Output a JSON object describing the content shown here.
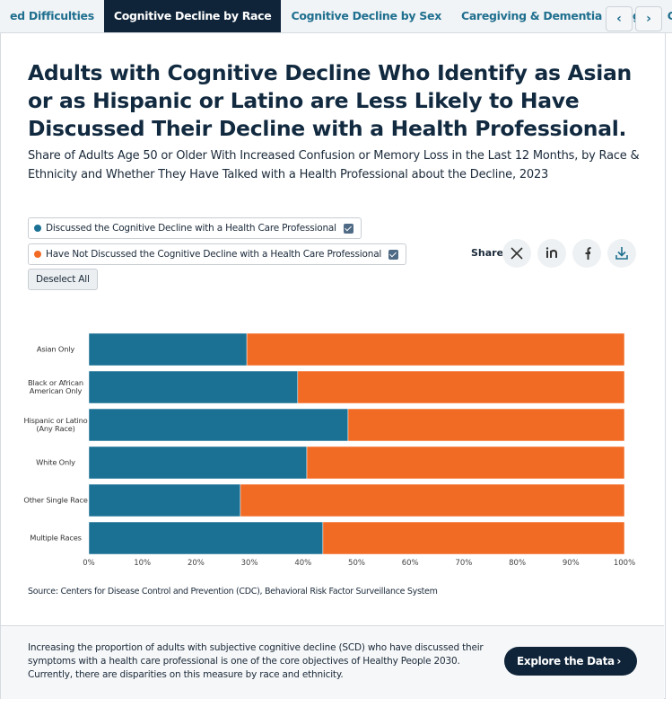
{
  "ui": {
    "tabs": [
      "ed Difficulties",
      "Cognitive Decline by Race",
      "Cognitive Decline by Sex",
      "Caregiving & Dementia by Age",
      "Caregiving"
    ],
    "active_tab": 1,
    "share_label": "Share",
    "deselect_label": "Deselect All",
    "source": "Source: Centers for Disease Control and Prevention (CDC), Behavioral Risk Factor Surveillance System",
    "footer_text": "Increasing the proportion of adults with subjective cognitive decline (SCD) who have discussed their symptoms with a health care professional is one of the core objectives of Healthy People 2030. Currently, there are disparities on this measure by race and ethnicity.",
    "footer_button": "Explore the Data"
  },
  "chart_data": {
    "type": "stacked-bar-horizontal",
    "title": "Adults with Cognitive Decline Who Identify as Asian or as Hispanic or Latino are Less Likely to Have Discussed Their Decline with a Health Professional.",
    "subtitle": "Share of Adults Age 50 or Older With Increased Confusion or Memory Loss in the Last 12 Months, by Race & Ethnicity and Whether They Have Talked with a Health Professional about the Decline, 2023",
    "categories": [
      "Asian Only",
      "Black or African American Only",
      "Hispanic or Latino (Any Race)",
      "White Only",
      "Other Single Race",
      "Multiple Races"
    ],
    "series": [
      {
        "name": "Discussed the Cognitive Decline with a Health Care Professional",
        "color": "#1b7194",
        "values": [
          29.5,
          39,
          48.4,
          40.7,
          28.3,
          43.7
        ]
      },
      {
        "name": "Have Not Discussed the Cognitive Decline with a Health Care Professional",
        "color": "#f26b25",
        "values": [
          70.5,
          61,
          51.6,
          59.3,
          71.7,
          56.3
        ]
      }
    ],
    "xlim": [
      0,
      100
    ],
    "xticks": [
      {
        "value": 0,
        "label": "0%"
      },
      {
        "value": 10,
        "label": "10%"
      },
      {
        "value": 20,
        "label": "20%"
      },
      {
        "value": 30,
        "label": "30%"
      },
      {
        "value": 40,
        "label": "40%"
      },
      {
        "value": 50,
        "label": "50%"
      },
      {
        "value": 60,
        "label": "60%"
      },
      {
        "value": 70,
        "label": "70%"
      },
      {
        "value": 80,
        "label": "80%"
      },
      {
        "value": 90,
        "label": "90%"
      },
      {
        "value": 100,
        "label": "100%"
      }
    ],
    "grid": false
  }
}
